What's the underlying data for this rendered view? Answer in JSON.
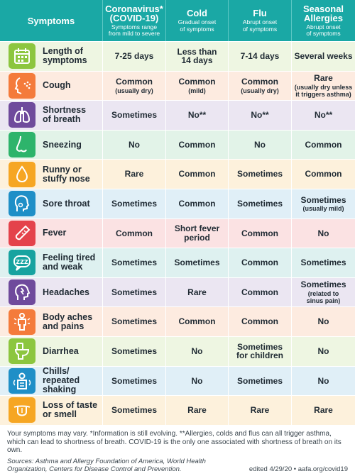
{
  "header": [
    {
      "main": "Symptoms",
      "sub": ""
    },
    {
      "main": "Coronavirus*\n(COVID-19)",
      "sub": "Symptoms range\nfrom mild to severe"
    },
    {
      "main": "Cold",
      "sub": "Gradual onset\nof symptoms"
    },
    {
      "main": "Flu",
      "sub": "Abrupt onset\nof symptoms"
    },
    {
      "main": "Seasonal\nAllergies",
      "sub": "Abrupt onset\nof symptoms"
    }
  ],
  "rows": [
    {
      "symptom": "Length of\nsymptoms",
      "icon": "calendar-icon",
      "color": "#8cc63f",
      "bg": "#eef6e2",
      "cells": [
        {
          "main": "7-25 days",
          "sub": ""
        },
        {
          "main": "Less than\n14 days",
          "sub": ""
        },
        {
          "main": "7-14 days",
          "sub": ""
        },
        {
          "main": "Several weeks",
          "sub": ""
        }
      ]
    },
    {
      "symptom": "Cough",
      "icon": "cough-icon",
      "color": "#f47b3b",
      "bg": "#fdebe0",
      "cells": [
        {
          "main": "Common",
          "sub": "(usually dry)"
        },
        {
          "main": "Common",
          "sub": "(mild)"
        },
        {
          "main": "Common",
          "sub": "(usually dry)"
        },
        {
          "main": "Rare",
          "sub": "(usually dry unless\nit triggers asthma)"
        }
      ]
    },
    {
      "symptom": "Shortness\nof breath",
      "icon": "lungs-icon",
      "color": "#6f4a9c",
      "bg": "#ebe6f2",
      "cells": [
        {
          "main": "Sometimes",
          "sub": ""
        },
        {
          "main": "No**",
          "sub": ""
        },
        {
          "main": "No**",
          "sub": ""
        },
        {
          "main": "No**",
          "sub": ""
        }
      ]
    },
    {
      "symptom": "Sneezing",
      "icon": "nose-icon",
      "color": "#2db46b",
      "bg": "#e2f3e8",
      "cells": [
        {
          "main": "No",
          "sub": ""
        },
        {
          "main": "Common",
          "sub": ""
        },
        {
          "main": "No",
          "sub": ""
        },
        {
          "main": "Common",
          "sub": ""
        }
      ]
    },
    {
      "symptom": "Runny or\nstuffy nose",
      "icon": "droplet-icon",
      "color": "#f6a623",
      "bg": "#fdf1dc",
      "cells": [
        {
          "main": "Rare",
          "sub": ""
        },
        {
          "main": "Common",
          "sub": ""
        },
        {
          "main": "Sometimes",
          "sub": ""
        },
        {
          "main": "Common",
          "sub": ""
        }
      ]
    },
    {
      "symptom": "Sore throat",
      "icon": "throat-icon",
      "color": "#1f8fc7",
      "bg": "#e0eff7",
      "cells": [
        {
          "main": "Sometimes",
          "sub": ""
        },
        {
          "main": "Common",
          "sub": ""
        },
        {
          "main": "Sometimes",
          "sub": ""
        },
        {
          "main": "Sometimes",
          "sub": "(usually mild)"
        }
      ]
    },
    {
      "symptom": "Fever",
      "icon": "thermometer-icon",
      "color": "#e4424b",
      "bg": "#fbe2e3",
      "cells": [
        {
          "main": "Common",
          "sub": ""
        },
        {
          "main": "Short fever\nperiod",
          "sub": ""
        },
        {
          "main": "Common",
          "sub": ""
        },
        {
          "main": "No",
          "sub": ""
        }
      ]
    },
    {
      "symptom": "Feeling tired\nand weak",
      "icon": "tired-icon",
      "color": "#17a3a0",
      "bg": "#def1f0",
      "cells": [
        {
          "main": "Sometimes",
          "sub": ""
        },
        {
          "main": "Sometimes",
          "sub": ""
        },
        {
          "main": "Common",
          "sub": ""
        },
        {
          "main": "Sometimes",
          "sub": ""
        }
      ]
    },
    {
      "symptom": "Headaches",
      "icon": "headache-icon",
      "color": "#6f4a9c",
      "bg": "#ebe6f2",
      "cells": [
        {
          "main": "Sometimes",
          "sub": ""
        },
        {
          "main": "Rare",
          "sub": ""
        },
        {
          "main": "Common",
          "sub": ""
        },
        {
          "main": "Sometimes",
          "sub": "(related to\nsinus pain)"
        }
      ]
    },
    {
      "symptom": "Body aches\nand pains",
      "icon": "body-aches-icon",
      "color": "#f47b3b",
      "bg": "#fdebe0",
      "cells": [
        {
          "main": "Sometimes",
          "sub": ""
        },
        {
          "main": "Common",
          "sub": ""
        },
        {
          "main": "Common",
          "sub": ""
        },
        {
          "main": "No",
          "sub": ""
        }
      ]
    },
    {
      "symptom": "Diarrhea",
      "icon": "toilet-icon",
      "color": "#8cc63f",
      "bg": "#eef6e2",
      "cells": [
        {
          "main": "Sometimes",
          "sub": ""
        },
        {
          "main": "No",
          "sub": ""
        },
        {
          "main": "Sometimes\nfor children",
          "sub": ""
        },
        {
          "main": "No",
          "sub": ""
        }
      ]
    },
    {
      "symptom": "Chills/\nrepeated\nshaking",
      "icon": "chills-icon",
      "color": "#1f8fc7",
      "bg": "#e0eff7",
      "cells": [
        {
          "main": "Sometimes",
          "sub": ""
        },
        {
          "main": "No",
          "sub": ""
        },
        {
          "main": "Sometimes",
          "sub": ""
        },
        {
          "main": "No",
          "sub": ""
        }
      ]
    },
    {
      "symptom": "Loss of taste\nor smell",
      "icon": "tongue-icon",
      "color": "#f6a623",
      "bg": "#fdf1dc",
      "cells": [
        {
          "main": "Sometimes",
          "sub": ""
        },
        {
          "main": "Rare",
          "sub": ""
        },
        {
          "main": "Rare",
          "sub": ""
        },
        {
          "main": "Rare",
          "sub": ""
        }
      ]
    }
  ],
  "footer": {
    "note": "Your symptoms may vary. *Information is still evolving. **Allergies, colds and flus can all trigger asthma, which can lead to shortness of breath. COVID-19 is the only one associated with shortness of breath on its own.",
    "sources": "Sources: Asthma and Allergy Foundation of America, World Health Organization, Centers for Disease Control and Prevention.",
    "edited": "edited 4/29/20 • aafa.org/covid19"
  }
}
